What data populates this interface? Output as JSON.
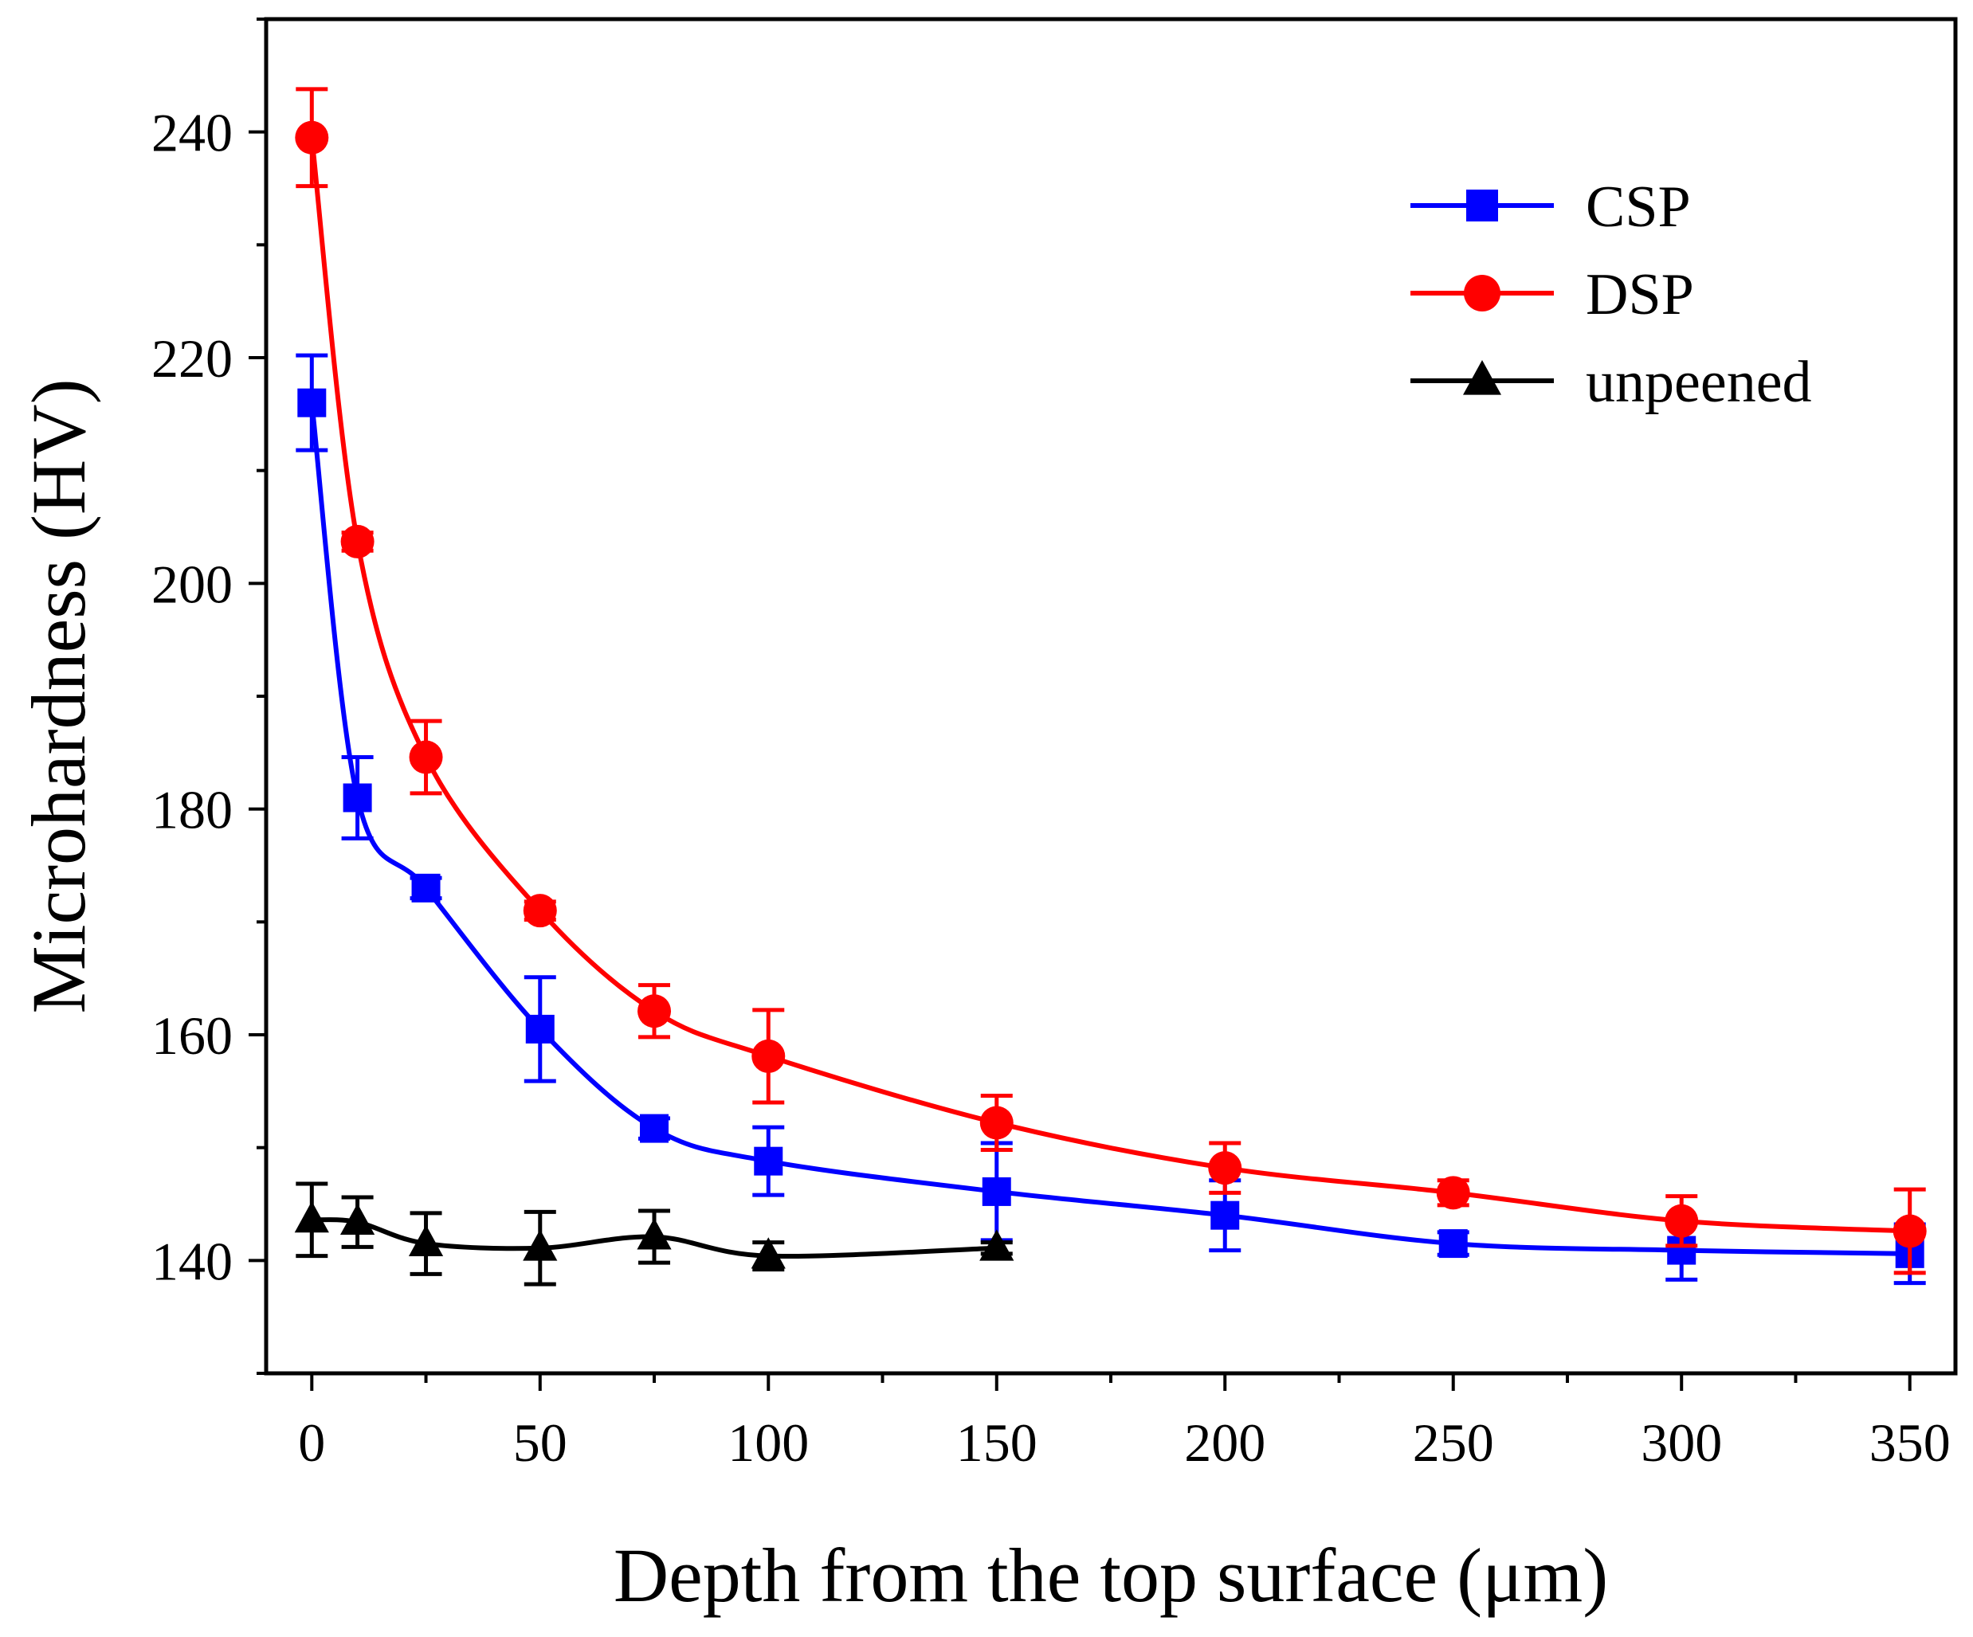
{
  "chart_data": {
    "type": "line",
    "title": "",
    "xlabel": "Depth from the top surface (μm)",
    "ylabel": "Microhardness (HV)",
    "xlim": [
      -10,
      360
    ],
    "ylim": [
      130,
      250
    ],
    "xticks": [
      0,
      50,
      100,
      150,
      200,
      250,
      300,
      350
    ],
    "yticks": [
      140,
      160,
      180,
      200,
      220,
      240
    ],
    "legend_position": "top-right",
    "series": [
      {
        "name": "CSP",
        "color": "#0000ff",
        "marker": "square",
        "x": [
          0,
          10,
          25,
          50,
          75,
          100,
          150,
          200,
          250,
          300,
          350
        ],
        "y": [
          216,
          181,
          173,
          160.5,
          151.7,
          148.8,
          146.1,
          144,
          141.5,
          140.9,
          140.6
        ],
        "err": [
          4.2,
          3.6,
          0.9,
          4.6,
          0.9,
          3,
          4.3,
          3.1,
          1,
          2.6,
          2.6
        ]
      },
      {
        "name": "DSP",
        "color": "#ff0000",
        "marker": "circle",
        "x": [
          0,
          10,
          25,
          50,
          75,
          100,
          150,
          200,
          250,
          300,
          350
        ],
        "y": [
          239.5,
          203.7,
          184.6,
          171,
          162.1,
          158.1,
          152.2,
          148.2,
          146,
          143.5,
          142.6
        ],
        "err": [
          4.3,
          0.8,
          3.2,
          0.8,
          2.3,
          4.1,
          2.4,
          2.2,
          1.1,
          2.2,
          3.7
        ]
      },
      {
        "name": "unpeened",
        "color": "#000000",
        "marker": "triangle",
        "x": [
          0,
          10,
          25,
          50,
          75,
          100,
          150
        ],
        "y": [
          143.6,
          143.4,
          141.5,
          141.1,
          142.1,
          140.4,
          141.1
        ],
        "err": [
          3.2,
          2.2,
          2.7,
          3.2,
          2.3,
          1.2,
          0.5
        ]
      }
    ]
  }
}
